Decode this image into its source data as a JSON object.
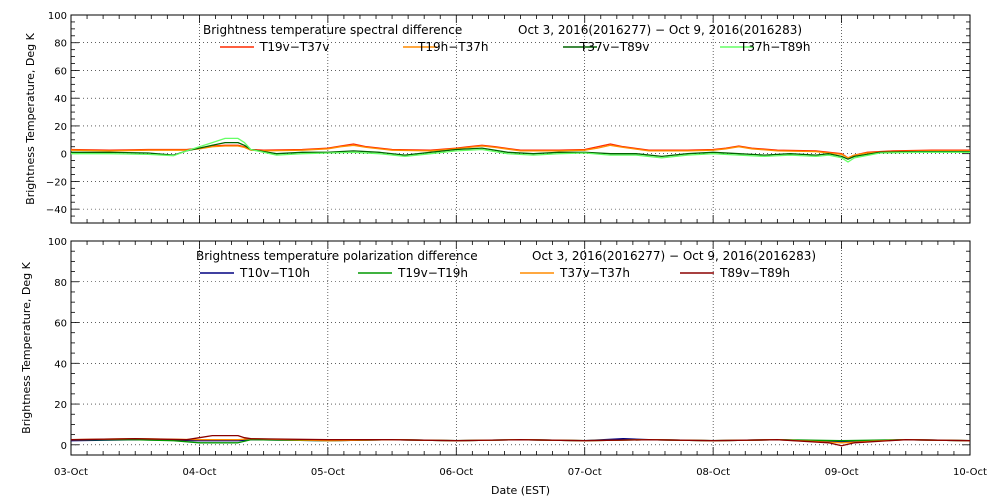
{
  "chart_data": [
    {
      "type": "line",
      "title": "Brightness temperature spectral difference",
      "date_range": "Oct  3, 2016(2016277) − Oct  9, 2016(2016283)",
      "ylabel": "Brightness Temperature, Deg K",
      "xlabel": "",
      "xlim": [
        0,
        7
      ],
      "ylim": [
        -50,
        100
      ],
      "yticks": [
        "−40",
        "−20",
        "0",
        "20",
        "40",
        "60",
        "80",
        "100"
      ],
      "ytick_values": [
        -40,
        -20,
        0,
        20,
        40,
        60,
        80,
        100
      ],
      "grid": true,
      "legend_placement": "top",
      "series": [
        {
          "name": "T19v−T37v",
          "color": "#ff2a00",
          "x": [
            0,
            0.3,
            0.6,
            0.9,
            1.0,
            1.1,
            1.2,
            1.3,
            1.35,
            1.4,
            1.5,
            1.8,
            2.0,
            2.1,
            2.2,
            2.3,
            2.5,
            2.8,
            3.0,
            3.1,
            3.2,
            3.3,
            3.5,
            3.8,
            4.0,
            4.1,
            4.2,
            4.3,
            4.5,
            4.8,
            5.0,
            5.1,
            5.2,
            5.3,
            5.5,
            5.8,
            6.0,
            6.05,
            6.1,
            6.2,
            6.4,
            6.7,
            7.0
          ],
          "y": [
            3,
            2.5,
            3,
            3,
            4,
            5.5,
            6,
            6,
            5,
            3,
            2.5,
            3,
            4,
            5.5,
            7,
            5,
            3,
            2.5,
            4,
            5,
            6,
            5,
            2.5,
            2.5,
            3,
            5,
            7,
            5,
            2.5,
            2.5,
            3,
            4,
            5.5,
            4,
            2.5,
            2,
            0,
            -3,
            -1,
            1,
            2,
            2.5,
            2.5
          ]
        },
        {
          "name": "T19h−T37h",
          "color": "#ff8c00",
          "x": [
            0,
            0.3,
            0.6,
            0.9,
            1.0,
            1.1,
            1.2,
            1.3,
            1.35,
            1.4,
            1.5,
            1.8,
            2.0,
            2.1,
            2.2,
            2.3,
            2.5,
            2.8,
            3.0,
            3.1,
            3.2,
            3.3,
            3.5,
            3.8,
            4.0,
            4.1,
            4.2,
            4.3,
            4.5,
            4.8,
            5.0,
            5.1,
            5.2,
            5.3,
            5.5,
            5.8,
            6.0,
            6.05,
            6.1,
            6.2,
            6.4,
            6.7,
            7.0
          ],
          "y": [
            2.5,
            2,
            2.5,
            2.5,
            3.5,
            5,
            5.5,
            5.5,
            4.5,
            2.5,
            2,
            2.5,
            3.5,
            5,
            6,
            4.5,
            2.5,
            2,
            3.5,
            4.5,
            5.5,
            4.5,
            2,
            2,
            2.5,
            4,
            6,
            4.5,
            2,
            2,
            2.5,
            3.5,
            5,
            3.5,
            2,
            1.5,
            -0.5,
            -3,
            -1,
            0.5,
            1.5,
            2,
            2
          ]
        },
        {
          "name": "T37v−T89v",
          "color": "#006400",
          "x": [
            0,
            0.3,
            0.6,
            0.8,
            0.9,
            1.0,
            1.1,
            1.2,
            1.3,
            1.35,
            1.4,
            1.6,
            1.8,
            2.0,
            2.2,
            2.4,
            2.6,
            2.8,
            3.0,
            3.2,
            3.4,
            3.6,
            3.8,
            4.0,
            4.2,
            4.4,
            4.6,
            4.8,
            5.0,
            5.2,
            5.4,
            5.6,
            5.8,
            5.9,
            6.0,
            6.05,
            6.1,
            6.3,
            6.6,
            7.0
          ],
          "y": [
            1,
            1,
            0.5,
            -1,
            2,
            4,
            6,
            8,
            8,
            6,
            3,
            0,
            1,
            1,
            2,
            1,
            -1,
            1,
            3,
            4,
            1,
            0,
            1,
            1,
            0,
            0,
            -2,
            0,
            1,
            0,
            -1,
            0,
            -1,
            0,
            -2,
            -4,
            -2,
            1,
            1.5,
            1.5
          ]
        },
        {
          "name": "T37h−T89h",
          "color": "#66ff66",
          "x": [
            0,
            0.3,
            0.6,
            0.8,
            0.9,
            1.0,
            1.1,
            1.2,
            1.3,
            1.35,
            1.4,
            1.6,
            1.8,
            2.0,
            2.2,
            2.4,
            2.6,
            2.8,
            3.0,
            3.2,
            3.4,
            3.6,
            3.8,
            4.0,
            4.2,
            4.4,
            4.6,
            4.8,
            5.0,
            5.2,
            5.4,
            5.6,
            5.8,
            5.9,
            6.0,
            6.05,
            6.1,
            6.3,
            6.6,
            7.0
          ],
          "y": [
            0,
            0,
            -0.5,
            -1.5,
            2,
            5,
            8,
            11,
            11,
            8,
            3,
            -1,
            0,
            0.5,
            1,
            0,
            -2,
            0,
            2,
            3,
            0,
            -1,
            0,
            0.5,
            -1,
            -1,
            -3,
            -1,
            0,
            -1,
            -2,
            -1,
            -2,
            -1,
            -3,
            -6,
            -3,
            0.5,
            1,
            1
          ]
        }
      ]
    },
    {
      "type": "line",
      "title": "Brightness temperature polarization difference",
      "date_range": "Oct  3, 2016(2016277) − Oct  9, 2016(2016283)",
      "ylabel": "Brightness Temperature, Deg K",
      "xlabel": "Date (EST)",
      "xlim": [
        0,
        7
      ],
      "ylim": [
        -5,
        100
      ],
      "xticks": [
        "03-Oct",
        "04-Oct",
        "05-Oct",
        "06-Oct",
        "07-Oct",
        "08-Oct",
        "09-Oct",
        "10-Oct"
      ],
      "yticks": [
        "0",
        "20",
        "40",
        "60",
        "80",
        "100"
      ],
      "ytick_values": [
        0,
        20,
        40,
        60,
        80,
        100
      ],
      "grid": true,
      "legend_placement": "top",
      "series": [
        {
          "name": "T10v−T10h",
          "color": "#000080",
          "x": [
            0,
            0.5,
            1.0,
            1.3,
            1.4,
            2.0,
            2.5,
            3.0,
            3.5,
            4.0,
            4.3,
            4.5,
            5.0,
            5.5,
            6.0,
            6.5,
            7.0
          ],
          "y": [
            2,
            2.5,
            2,
            2,
            2.5,
            2,
            2.5,
            2,
            2.5,
            2,
            3,
            2.5,
            2,
            2.5,
            1.5,
            2.5,
            2
          ]
        },
        {
          "name": "T19v−T19h",
          "color": "#009900",
          "x": [
            0,
            0.5,
            0.8,
            1.0,
            1.3,
            1.4,
            2.0,
            2.5,
            3.0,
            3.5,
            4.0,
            4.5,
            5.0,
            5.5,
            6.0,
            6.5,
            7.0
          ],
          "y": [
            2.5,
            2.5,
            2,
            1,
            1,
            2.5,
            2,
            2.5,
            2,
            2.5,
            2,
            2.5,
            2,
            2.5,
            2,
            2.5,
            2
          ]
        },
        {
          "name": "T37v−T37h",
          "color": "#ff8c00",
          "x": [
            0,
            0.5,
            1.0,
            1.3,
            1.4,
            2.0,
            2.5,
            3.0,
            3.5,
            4.0,
            4.5,
            5.0,
            5.5,
            6.0,
            6.5,
            7.0
          ],
          "y": [
            2.5,
            3,
            2.5,
            2.5,
            3,
            2,
            2.5,
            2,
            2.5,
            2,
            2.5,
            2,
            2.5,
            1,
            2.5,
            2
          ]
        },
        {
          "name": "T89v−T89h",
          "color": "#8b0000",
          "x": [
            0,
            0.5,
            0.9,
            1.0,
            1.1,
            1.3,
            1.35,
            1.4,
            2.0,
            2.5,
            3.0,
            3.5,
            4.0,
            4.5,
            5.0,
            5.5,
            5.9,
            6.0,
            6.1,
            6.5,
            7.0
          ],
          "y": [
            2.5,
            3,
            2.5,
            3.5,
            4.5,
            4.5,
            3.5,
            3,
            2.5,
            2.5,
            2,
            2.5,
            2,
            2.5,
            2,
            2.5,
            1,
            -0.5,
            1,
            2.5,
            2
          ]
        }
      ]
    }
  ]
}
